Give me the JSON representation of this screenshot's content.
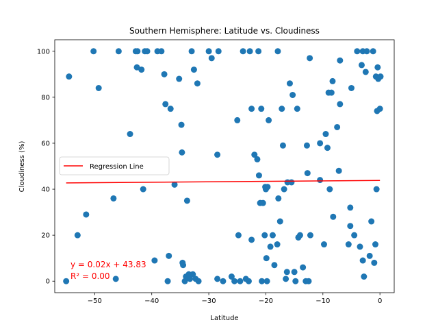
{
  "chart_data": {
    "type": "scatter",
    "title": "Southern Hemisphere: Latitude vs. Cloudiness",
    "xlabel": "Latitude",
    "ylabel": "Cloudiness (%)",
    "xlim": [
      -57,
      2.5
    ],
    "ylim": [
      -5,
      105
    ],
    "xticks": [
      -50,
      -40,
      -30,
      -20,
      -10,
      0
    ],
    "yticks": [
      0,
      20,
      40,
      60,
      80,
      100
    ],
    "grid": false,
    "legend": {
      "position": "center-left",
      "entries": [
        "Regression Line"
      ]
    },
    "colors": {
      "points": "#1f77b4",
      "regression": "#ff0000",
      "annotation": "#ff0000"
    },
    "regression": {
      "slope": 0.02,
      "intercept": 43.83,
      "x_range": [
        -55,
        0
      ]
    },
    "annotations": [
      "y = 0.02x + 43.83",
      "R² = 0.00"
    ],
    "points": [
      [
        -55,
        0
      ],
      [
        -54.5,
        89
      ],
      [
        -53,
        20
      ],
      [
        -51.5,
        29
      ],
      [
        -50.2,
        100
      ],
      [
        -49.3,
        84
      ],
      [
        -46.7,
        36
      ],
      [
        -46.3,
        1
      ],
      [
        -45.8,
        100
      ],
      [
        -43.8,
        64
      ],
      [
        -42.8,
        100
      ],
      [
        -42.6,
        93
      ],
      [
        -42.5,
        100
      ],
      [
        -41.8,
        92
      ],
      [
        -41.5,
        40
      ],
      [
        -41.2,
        100
      ],
      [
        -40.8,
        100
      ],
      [
        -39.5,
        9
      ],
      [
        -39,
        100
      ],
      [
        -38.3,
        100
      ],
      [
        -37.8,
        90
      ],
      [
        -37.6,
        77
      ],
      [
        -37.2,
        0
      ],
      [
        -37,
        11
      ],
      [
        -36.7,
        75
      ],
      [
        -36,
        42
      ],
      [
        -35.2,
        88
      ],
      [
        -34.8,
        68
      ],
      [
        -34.7,
        56
      ],
      [
        -34.6,
        8
      ],
      [
        -34.5,
        7
      ],
      [
        -34.2,
        0
      ],
      [
        -34,
        2
      ],
      [
        -33.8,
        35
      ],
      [
        -33.5,
        3
      ],
      [
        -33.3,
        1
      ],
      [
        -33,
        100
      ],
      [
        -32.8,
        3
      ],
      [
        -32.6,
        92
      ],
      [
        -32.3,
        1
      ],
      [
        -32,
        86
      ],
      [
        -31.8,
        0
      ],
      [
        -30,
        100
      ],
      [
        -29.5,
        97
      ],
      [
        -28.5,
        55
      ],
      [
        -28.3,
        100
      ],
      [
        -28.5,
        1
      ],
      [
        -27.5,
        0
      ],
      [
        -26,
        2
      ],
      [
        -25.5,
        0
      ],
      [
        -25,
        70
      ],
      [
        -24.8,
        20
      ],
      [
        -24.5,
        0
      ],
      [
        -24,
        100
      ],
      [
        -23.5,
        1
      ],
      [
        -23,
        0
      ],
      [
        -22.8,
        100
      ],
      [
        -22.5,
        75
      ],
      [
        -22.5,
        18
      ],
      [
        -22,
        55
      ],
      [
        -21.5,
        53
      ],
      [
        -21.3,
        100
      ],
      [
        -21.2,
        46
      ],
      [
        -21,
        34
      ],
      [
        -20.8,
        75
      ],
      [
        -20.7,
        0
      ],
      [
        -20.5,
        34
      ],
      [
        -20.2,
        20
      ],
      [
        -20.1,
        41
      ],
      [
        -20,
        40
      ],
      [
        -19.9,
        10
      ],
      [
        -19.8,
        0
      ],
      [
        -19.7,
        41
      ],
      [
        -19.5,
        70
      ],
      [
        -19.2,
        15
      ],
      [
        -18.8,
        20
      ],
      [
        -18.5,
        7
      ],
      [
        -18,
        16
      ],
      [
        -17.9,
        100
      ],
      [
        -17.8,
        36
      ],
      [
        -17.5,
        26
      ],
      [
        -17.2,
        75
      ],
      [
        -17,
        59
      ],
      [
        -16.8,
        40
      ],
      [
        -16.5,
        1
      ],
      [
        -16.3,
        4
      ],
      [
        -16.2,
        43
      ],
      [
        -15.8,
        86
      ],
      [
        -15.5,
        43
      ],
      [
        -15.3,
        81
      ],
      [
        -15,
        4
      ],
      [
        -14.8,
        0
      ],
      [
        -14.5,
        75
      ],
      [
        -14.3,
        19
      ],
      [
        -14,
        20
      ],
      [
        -13.5,
        6
      ],
      [
        -13,
        0
      ],
      [
        -12.8,
        59
      ],
      [
        -12.7,
        47
      ],
      [
        -12.5,
        0
      ],
      [
        -12.3,
        97
      ],
      [
        -12.2,
        20
      ],
      [
        -10.5,
        60
      ],
      [
        -10.5,
        44
      ],
      [
        -9.8,
        16
      ],
      [
        -9.5,
        64
      ],
      [
        -9.2,
        58
      ],
      [
        -9,
        82
      ],
      [
        -8.8,
        40
      ],
      [
        -8.5,
        82
      ],
      [
        -8.3,
        87
      ],
      [
        -8.2,
        28
      ],
      [
        -7.5,
        67
      ],
      [
        -7.2,
        48
      ],
      [
        -7,
        96
      ],
      [
        -7,
        77
      ],
      [
        -5.5,
        16
      ],
      [
        -5.2,
        32
      ],
      [
        -5.2,
        24
      ],
      [
        -5,
        84
      ],
      [
        -4.5,
        20
      ],
      [
        -4,
        100
      ],
      [
        -3.5,
        15
      ],
      [
        -3.2,
        94
      ],
      [
        -3,
        100
      ],
      [
        -3,
        9
      ],
      [
        -2.8,
        2
      ],
      [
        -2.5,
        91
      ],
      [
        -2.3,
        100
      ],
      [
        -1.8,
        11
      ],
      [
        -1.5,
        26
      ],
      [
        -1.2,
        100
      ],
      [
        -1,
        8
      ],
      [
        -0.8,
        16
      ],
      [
        -0.7,
        89
      ],
      [
        -0.6,
        40
      ],
      [
        -0.5,
        74
      ],
      [
        -0.4,
        93
      ],
      [
        -0.3,
        88
      ],
      [
        0,
        75
      ],
      [
        0.1,
        89
      ]
    ]
  }
}
